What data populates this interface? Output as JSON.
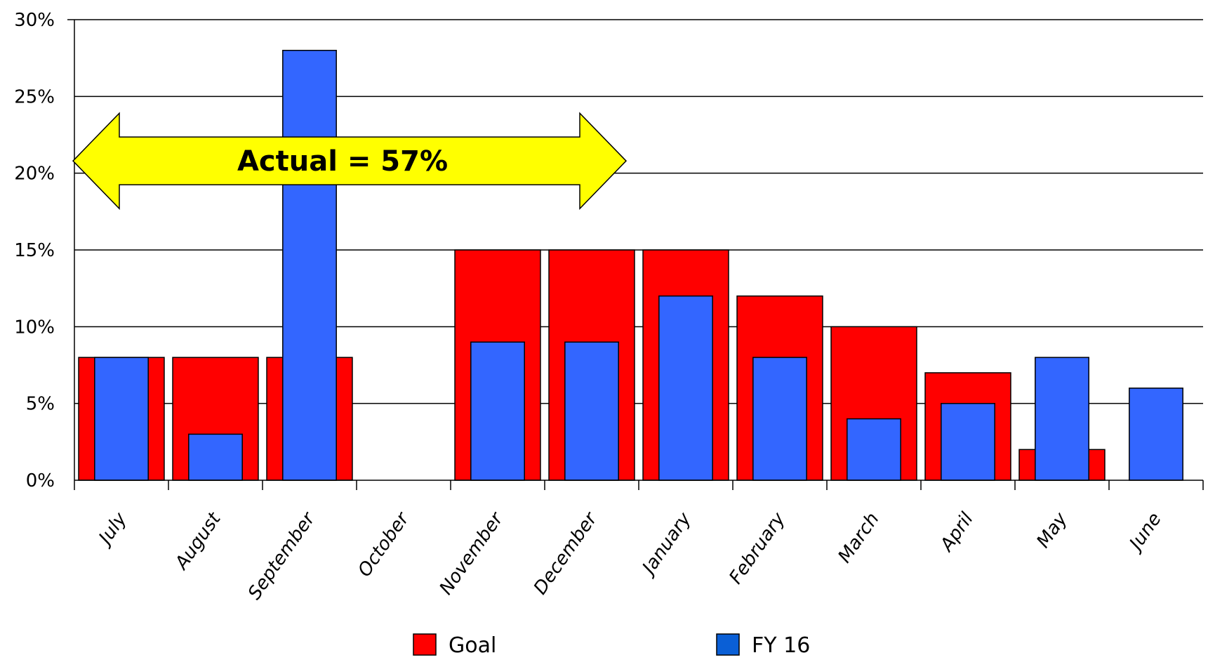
{
  "chart_data": {
    "type": "bar",
    "categories": [
      "July",
      "August",
      "September",
      "October",
      "November",
      "December",
      "January",
      "February",
      "March",
      "April",
      "May",
      "June"
    ],
    "series": [
      {
        "name": "Goal",
        "color": "#ff0000",
        "values": [
          8,
          8,
          8,
          0,
          15,
          15,
          15,
          12,
          10,
          7,
          2,
          0
        ]
      },
      {
        "name": "FY 16",
        "color": "#3366ff",
        "values": [
          8,
          3,
          28,
          0,
          9,
          9,
          12,
          8,
          4,
          5,
          8,
          6
        ]
      }
    ],
    "ylim": [
      0,
      30
    ],
    "yticks": [
      0,
      5,
      10,
      15,
      20,
      25,
      30
    ],
    "ytick_labels": [
      "0%",
      "5%",
      "10%",
      "15%",
      "20%",
      "25%",
      "30%"
    ],
    "grid": true,
    "legend": {
      "position": "bottom",
      "entries": [
        {
          "label": "Goal",
          "color": "#ff0000"
        },
        {
          "label": "FY 16",
          "color": "#0a5fd6"
        }
      ]
    },
    "annotation": {
      "text": "Actual = 57%",
      "fill": "#ffff00",
      "shape": "double-arrow",
      "span_categories": [
        "July",
        "December"
      ],
      "level": 20.8
    }
  }
}
